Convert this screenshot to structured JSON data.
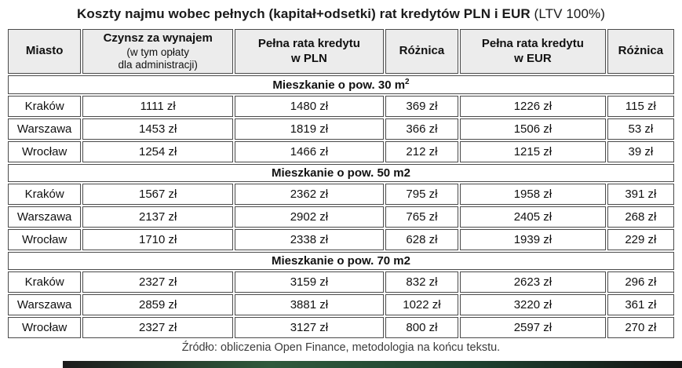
{
  "title": {
    "bold": "Koszty najmu wobec pełnych (kapitał+odsetki) rat kredytów PLN i EUR",
    "normal": " (LTV 100%)"
  },
  "table": {
    "headers": {
      "miasto": "Miasto",
      "czynsz_line1": "Czynsz za wynajem",
      "czynsz_line2": "(w tym opłaty",
      "czynsz_line3": "dla administracji)",
      "rata_pln_line1": "Pełna rata kredytu",
      "rata_pln_line2": "w PLN",
      "roznica_pln": "Różnica",
      "rata_eur_line1": "Pełna rata kredytu",
      "rata_eur_line2": "w EUR",
      "roznica_eur": "Różnica"
    },
    "sections": [
      {
        "label": "Mieszkanie o pow. 30 m",
        "sup": "2",
        "rows": [
          {
            "city": "Kraków",
            "values": [
              "1111 zł",
              "1480 zł",
              "369 zł",
              "1226 zł",
              "115 zł"
            ]
          },
          {
            "city": "Warszawa",
            "values": [
              "1453 zł",
              "1819 zł",
              "366 zł",
              "1506 zł",
              "53 zł"
            ]
          },
          {
            "city": "Wrocław",
            "values": [
              "1254 zł",
              "1466 zł",
              "212 zł",
              "1215 zł",
              "39 zł"
            ]
          }
        ]
      },
      {
        "label": "Mieszkanie o pow. 50 m2",
        "sup": "",
        "rows": [
          {
            "city": "Kraków",
            "values": [
              "1567 zł",
              "2362 zł",
              "795 zł",
              "1958 zł",
              "391 zł"
            ]
          },
          {
            "city": "Warszawa",
            "values": [
              "2137 zł",
              "2902 zł",
              "765 zł",
              "2405 zł",
              "268 zł"
            ]
          },
          {
            "city": "Wrocław",
            "values": [
              "1710 zł",
              "2338 zł",
              "628 zł",
              "1939 zł",
              "229 zł"
            ]
          }
        ]
      },
      {
        "label": "Mieszkanie o pow. 70 m2",
        "sup": "",
        "rows": [
          {
            "city": "Kraków",
            "values": [
              "2327 zł",
              "3159 zł",
              "832 zł",
              "2623 zł",
              "296 zł"
            ]
          },
          {
            "city": "Warszawa",
            "values": [
              "2859 zł",
              "3881 zł",
              "1022 zł",
              "3220 zł",
              "361 zł"
            ]
          },
          {
            "city": "Wrocław",
            "values": [
              "2327 zł",
              "3127 zł",
              "800 zł",
              "2597 zł",
              "270 zł"
            ]
          }
        ]
      }
    ]
  },
  "footer": "Źródło: obliczenia Open Finance, metodologia na końcu tekstu.",
  "colors": {
    "header_background": "#ececec",
    "border": "#4a4a4a",
    "bottom_bar_gradient": [
      "#1c1c1c",
      "#2f5a3c",
      "#1e4230",
      "#141414"
    ]
  }
}
